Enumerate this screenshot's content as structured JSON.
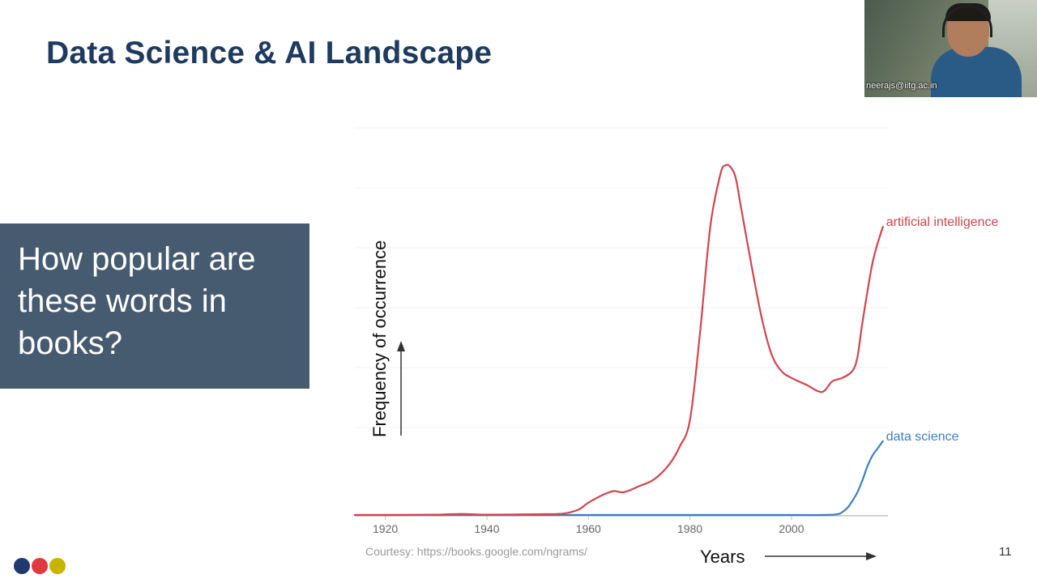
{
  "slide": {
    "title": "Data Science & AI Landscape",
    "question": "How popular are these words in books?",
    "credit": "Courtesy: https://books.google.com/ngrams/",
    "page_number": "11",
    "x_annotation": "Years",
    "y_annotation": "Frequency of occurrence",
    "logo_colors": [
      "#1e3a6e",
      "#e03a3e",
      "#c8b400"
    ]
  },
  "video": {
    "name_label": "neerajs@iitg.ac.in"
  },
  "chart_data": {
    "type": "line",
    "title": "",
    "xlabel": "Years",
    "ylabel": "Frequency of occurrence",
    "xlim": [
      1914,
      2019
    ],
    "ylim": [
      0,
      100
    ],
    "xticks": [
      "1920",
      "1940",
      "1960",
      "1980",
      "2000"
    ],
    "grid": true,
    "series": [
      {
        "name": "artificial intelligence",
        "color": "#d2454b",
        "x": [
          1914,
          1920,
          1930,
          1935,
          1940,
          1950,
          1955,
          1958,
          1960,
          1963,
          1965,
          1967,
          1970,
          1973,
          1976,
          1978,
          1980,
          1982,
          1984,
          1986,
          1987,
          1988,
          1989,
          1990,
          1992,
          1994,
          1996,
          1998,
          2000,
          2003,
          2006,
          2008,
          2010,
          2012,
          2013,
          2014,
          2016,
          2018
        ],
        "y": [
          0,
          0,
          0.1,
          0.3,
          0.1,
          0.2,
          0.4,
          1.5,
          3.5,
          5.8,
          6.8,
          6.5,
          8.2,
          10.2,
          14.5,
          19.5,
          27,
          52,
          82,
          97,
          99.5,
          99,
          96,
          88,
          72,
          57,
          46,
          41,
          39,
          37,
          35,
          38,
          39,
          41,
          45,
          55,
          72,
          82
        ]
      },
      {
        "name": "data science",
        "color": "#3c7fc2",
        "x": [
          1914,
          1960,
          2000,
          2006,
          2009,
          2010,
          2011,
          2012,
          2013,
          2014,
          2015,
          2016,
          2017,
          2018
        ],
        "y": [
          0,
          0,
          0,
          0,
          0.2,
          0.8,
          2,
          4,
          6.5,
          10,
          14,
          17,
          19,
          21
        ]
      }
    ]
  }
}
